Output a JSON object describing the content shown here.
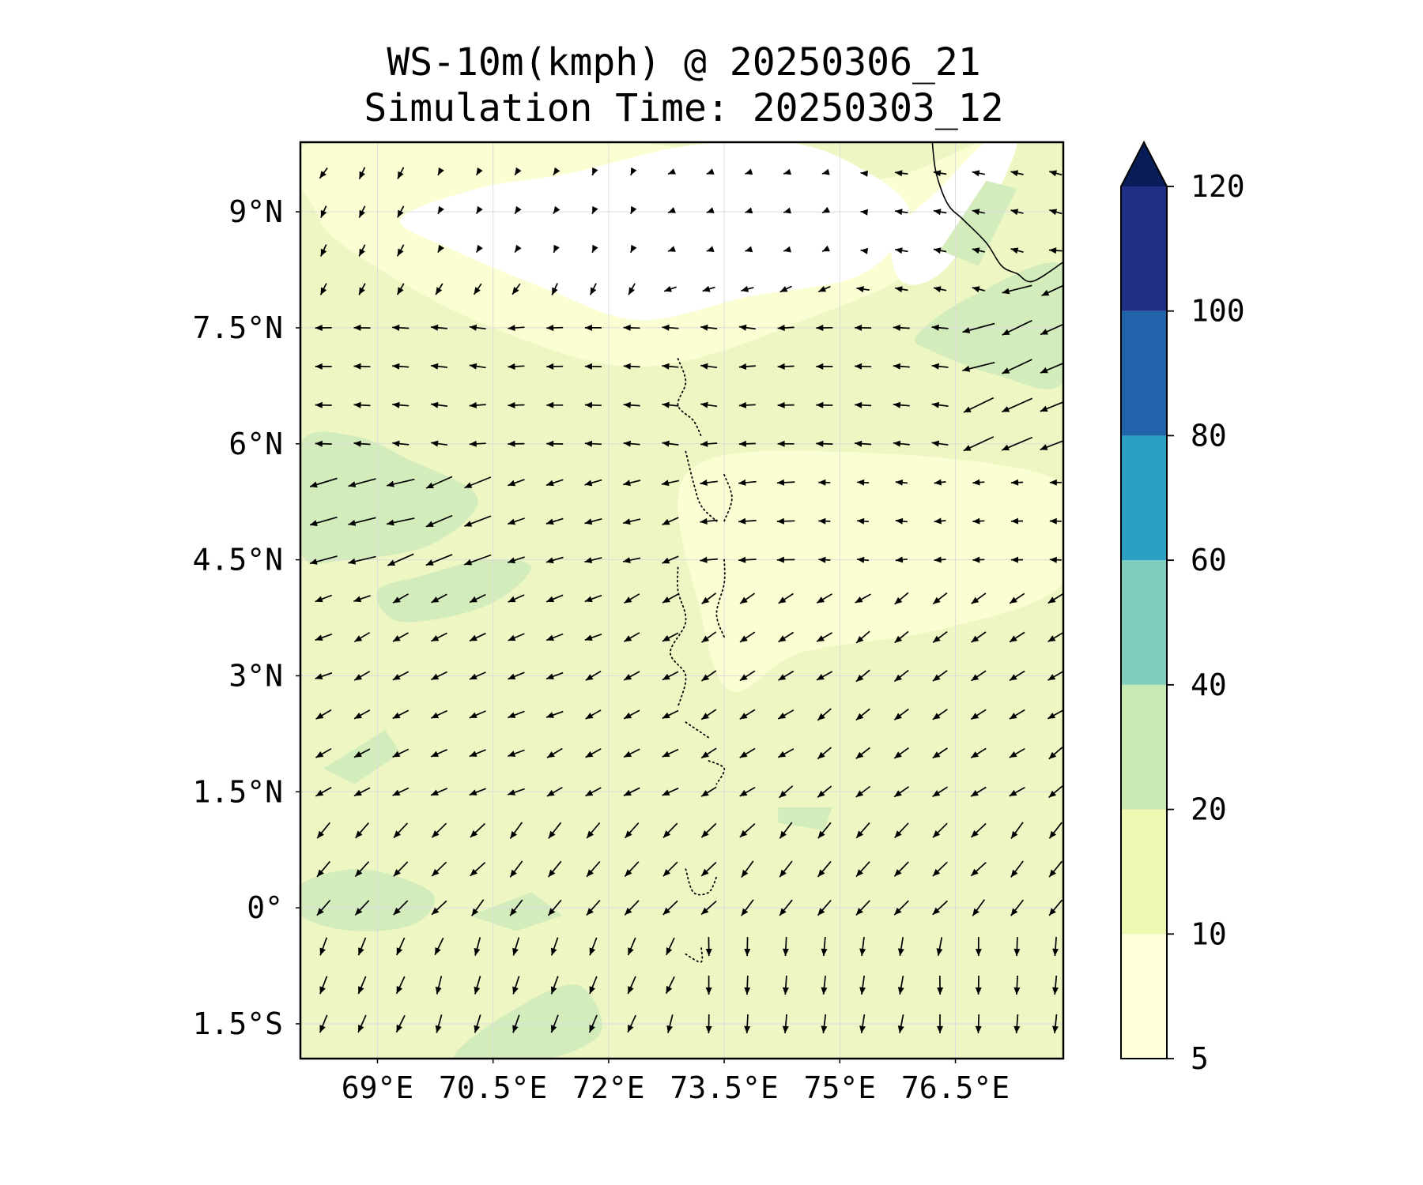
{
  "title": "WS-10m(kmph) @ 20250306_21",
  "subtitle": "Simulation Time: 20250303_12",
  "chart_data": {
    "type": "heatmap",
    "title": "WS-10m(kmph) @ 20250306_21",
    "subtitle": "Simulation Time: 20250303_12",
    "variable": "10 m wind speed (kmph) with wind direction vectors",
    "x_extent": [
      68.0,
      77.9
    ],
    "y_extent": [
      -1.95,
      9.9
    ],
    "x_ticks": [
      {
        "value": 69.0,
        "label": "69°E"
      },
      {
        "value": 70.5,
        "label": "70.5°E"
      },
      {
        "value": 72.0,
        "label": "72°E"
      },
      {
        "value": 73.5,
        "label": "73.5°E"
      },
      {
        "value": 75.0,
        "label": "75°E"
      },
      {
        "value": 76.5,
        "label": "76.5°E"
      }
    ],
    "y_ticks": [
      {
        "value": 9.0,
        "label": "9°N"
      },
      {
        "value": 7.5,
        "label": "7.5°N"
      },
      {
        "value": 6.0,
        "label": "6°N"
      },
      {
        "value": 4.5,
        "label": "4.5°N"
      },
      {
        "value": 3.0,
        "label": "3°N"
      },
      {
        "value": 1.5,
        "label": "1.5°N"
      },
      {
        "value": 0.0,
        "label": "0°"
      },
      {
        "value": -1.5,
        "label": "1.5°S"
      }
    ],
    "grid": true,
    "colorbar": {
      "placement": "right",
      "extend": "max",
      "levels": [
        5,
        10,
        20,
        40,
        60,
        80,
        100,
        120
      ],
      "colors": [
        "#ffffd9",
        "#edf8b1",
        "#c7e9b4",
        "#7fcdbb",
        "#2c9fc4",
        "#2163aa",
        "#1f2f85"
      ],
      "extend_color": "#081d58",
      "tick_labels": [
        "5",
        "10",
        "20",
        "40",
        "60",
        "80",
        "100",
        "120"
      ]
    },
    "regions": [
      {
        "range": [
          10,
          20
        ],
        "color": "#eef7c3",
        "polygon": [
          [
            68,
            -1.95
          ],
          [
            77.9,
            -1.95
          ],
          [
            77.9,
            9.9
          ],
          [
            68,
            9.9
          ]
        ]
      },
      {
        "range": [
          5,
          10
        ],
        "color": "#fbfed2",
        "polygon": [
          [
            68.2,
            9.9
          ],
          [
            72.3,
            9.9
          ],
          [
            75.3,
            9.4
          ],
          [
            77.0,
            9.9
          ],
          [
            76.1,
            8.4
          ],
          [
            74.8,
            7.7
          ],
          [
            72.5,
            7.0
          ],
          [
            70.5,
            7.5
          ],
          [
            68.8,
            8.4
          ],
          [
            68.2,
            9.0
          ]
        ]
      },
      {
        "range": [
          5,
          10
        ],
        "color": "#fbfed2",
        "polygon": [
          [
            73.0,
            5.6
          ],
          [
            74.9,
            5.9
          ],
          [
            77.9,
            5.5
          ],
          [
            77.9,
            4.2
          ],
          [
            76.3,
            3.6
          ],
          [
            74.5,
            3.3
          ],
          [
            73.6,
            2.8
          ],
          [
            73.2,
            3.8
          ]
        ]
      },
      {
        "range": [
          0,
          5
        ],
        "color": "#ffffff",
        "polygon": [
          [
            69.3,
            8.9
          ],
          [
            70.3,
            9.3
          ],
          [
            71.5,
            9.5
          ],
          [
            73.0,
            9.85
          ],
          [
            74.3,
            9.9
          ],
          [
            75.2,
            9.6
          ],
          [
            75.9,
            9.0
          ],
          [
            75.3,
            8.2
          ],
          [
            73.8,
            7.9
          ],
          [
            72.4,
            7.6
          ],
          [
            71.2,
            8.0
          ],
          [
            70.0,
            8.5
          ]
        ]
      },
      {
        "range": [
          0,
          5
        ],
        "color": "#ffffff",
        "polygon": [
          [
            75.7,
            8.7
          ],
          [
            76.3,
            9.3
          ],
          [
            76.9,
            9.9
          ],
          [
            77.3,
            9.9
          ],
          [
            76.9,
            9.0
          ],
          [
            76.3,
            8.2
          ],
          [
            75.8,
            8.1
          ]
        ]
      },
      {
        "range": [
          20,
          40
        ],
        "color": "#d2ecbb",
        "polygon": [
          [
            76.0,
            7.4
          ],
          [
            76.7,
            7.9
          ],
          [
            77.9,
            8.3
          ],
          [
            77.9,
            6.8
          ],
          [
            77.0,
            6.9
          ],
          [
            76.2,
            7.2
          ]
        ]
      },
      {
        "range": [
          20,
          40
        ],
        "color": "#d2ecbb",
        "polygon": [
          [
            68.0,
            6.0
          ],
          [
            68.7,
            6.1
          ],
          [
            69.4,
            5.8
          ],
          [
            70.3,
            5.3
          ],
          [
            69.7,
            4.7
          ],
          [
            68.6,
            4.5
          ],
          [
            68.0,
            4.6
          ]
        ]
      },
      {
        "range": [
          20,
          40
        ],
        "color": "#d2ecbb",
        "polygon": [
          [
            69.0,
            4.1
          ],
          [
            69.6,
            4.3
          ],
          [
            70.4,
            4.5
          ],
          [
            71.0,
            4.4
          ],
          [
            70.4,
            3.9
          ],
          [
            69.3,
            3.7
          ]
        ]
      },
      {
        "range": [
          20,
          40
        ],
        "color": "#d2ecbb",
        "polygon": [
          [
            68.0,
            0.3
          ],
          [
            68.8,
            0.5
          ],
          [
            69.7,
            0.2
          ],
          [
            69.5,
            -0.2
          ],
          [
            68.7,
            -0.3
          ],
          [
            68.0,
            -0.1
          ]
        ]
      },
      {
        "range": [
          20,
          40
        ],
        "color": "#d2ecbb",
        "polygon": [
          [
            70.2,
            -0.1
          ],
          [
            71.0,
            0.2
          ],
          [
            71.4,
            -0.1
          ],
          [
            70.8,
            -0.3
          ]
        ]
      },
      {
        "range": [
          20,
          40
        ],
        "color": "#d2ecbb",
        "polygon": [
          [
            70.0,
            -1.95
          ],
          [
            70.8,
            -1.3
          ],
          [
            71.6,
            -1.0
          ],
          [
            71.9,
            -1.6
          ],
          [
            71.2,
            -1.95
          ]
        ]
      },
      {
        "range": [
          20,
          40
        ],
        "color": "#d2ecbb",
        "polygon": [
          [
            68.3,
            1.8
          ],
          [
            69.1,
            2.3
          ],
          [
            69.3,
            2.0
          ],
          [
            68.7,
            1.6
          ]
        ]
      },
      {
        "range": [
          20,
          40
        ],
        "color": "#d2ecbb",
        "polygon": [
          [
            74.2,
            1.3
          ],
          [
            74.9,
            1.3
          ],
          [
            74.8,
            1.0
          ],
          [
            74.2,
            1.1
          ]
        ]
      },
      {
        "range": [
          20,
          40
        ],
        "color": "#d2ecbb",
        "polygon": [
          [
            76.3,
            8.5
          ],
          [
            76.9,
            9.4
          ],
          [
            77.3,
            9.3
          ],
          [
            76.8,
            8.3
          ]
        ]
      }
    ],
    "coastline": [
      [
        [
          76.2,
          9.9
        ],
        [
          76.25,
          9.5
        ],
        [
          76.4,
          9.1
        ],
        [
          76.6,
          8.9
        ],
        [
          76.9,
          8.6
        ],
        [
          77.1,
          8.3
        ],
        [
          77.3,
          8.2
        ],
        [
          77.5,
          8.1
        ],
        [
          77.9,
          8.35
        ]
      ]
    ],
    "islands": [
      [
        [
          72.9,
          7.1
        ],
        [
          73.0,
          6.8
        ],
        [
          72.9,
          6.5
        ],
        [
          73.1,
          6.3
        ],
        [
          73.2,
          6.1
        ]
      ],
      [
        [
          73.0,
          5.9
        ],
        [
          73.1,
          5.5
        ],
        [
          73.2,
          5.2
        ],
        [
          73.4,
          5.0
        ]
      ],
      [
        [
          73.5,
          5.6
        ],
        [
          73.6,
          5.3
        ],
        [
          73.5,
          5.0
        ]
      ],
      [
        [
          72.9,
          4.4
        ],
        [
          72.9,
          4.1
        ],
        [
          73.0,
          3.7
        ],
        [
          72.8,
          3.3
        ],
        [
          73.0,
          3.0
        ],
        [
          72.9,
          2.6
        ]
      ],
      [
        [
          73.5,
          4.5
        ],
        [
          73.5,
          4.2
        ],
        [
          73.4,
          3.8
        ],
        [
          73.5,
          3.5
        ]
      ],
      [
        [
          73.0,
          2.4
        ],
        [
          73.3,
          2.2
        ]
      ],
      [
        [
          73.3,
          1.9
        ],
        [
          73.5,
          1.8
        ],
        [
          73.4,
          1.6
        ]
      ],
      [
        [
          73.0,
          0.5
        ],
        [
          73.1,
          0.2
        ],
        [
          73.3,
          0.2
        ],
        [
          73.4,
          0.4
        ]
      ],
      [
        [
          73.0,
          -0.6
        ],
        [
          73.2,
          -0.7
        ],
        [
          73.2,
          -0.5
        ]
      ]
    ],
    "wind_vectors": {
      "units": "kmph",
      "lon": [
        68.3,
        68.8,
        69.3,
        69.8,
        70.3,
        70.8,
        71.3,
        71.8,
        72.3,
        72.8,
        73.3,
        73.8,
        74.3,
        74.8,
        75.3,
        75.8,
        76.3,
        76.8,
        77.3,
        77.8
      ],
      "lat": [
        9.5,
        9.0,
        8.5,
        8.0,
        7.5,
        7.0,
        6.5,
        6.0,
        5.5,
        5.0,
        4.5,
        4.0,
        3.5,
        3.0,
        2.5,
        2.0,
        1.5,
        1.0,
        0.5,
        0.0,
        -0.5,
        -1.0,
        -1.5
      ]
    }
  }
}
